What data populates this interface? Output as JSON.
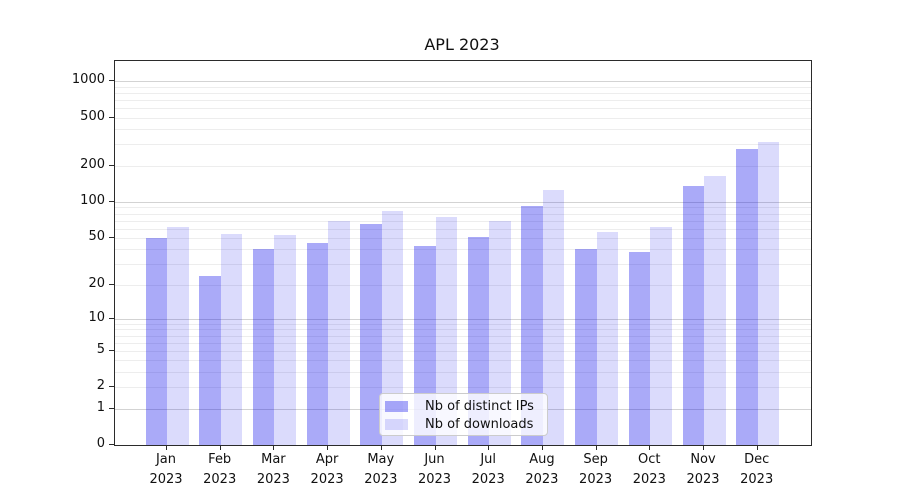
{
  "title": "APL 2023",
  "chart_data": {
    "type": "bar",
    "title": "APL 2023",
    "y_scale": "log10(1+y)",
    "ylim": [
      0,
      1465
    ],
    "y_ticks": [
      0,
      1,
      2,
      5,
      10,
      20,
      50,
      100,
      200,
      500,
      1000
    ],
    "y_tick_labels": [
      "0",
      "1",
      "2",
      "5",
      "10",
      "20",
      "50",
      "100",
      "200",
      "500",
      "1000"
    ],
    "categories": [
      "Jan",
      "Feb",
      "Mar",
      "Apr",
      "May",
      "Jun",
      "Jul",
      "Aug",
      "Sep",
      "Oct",
      "Nov",
      "Dec"
    ],
    "year": "2023",
    "series": [
      {
        "name": "Nb of distinct IPs",
        "color": "rgba(10,10,235,0.345)",
        "values": [
          50,
          24,
          40,
          45,
          65,
          43,
          51,
          93,
          40,
          38,
          135,
          273
        ]
      },
      {
        "name": "Nb of downloads",
        "color": "rgba(10,10,235,0.147)",
        "values": [
          62,
          54,
          53,
          70,
          84,
          75,
          70,
          125,
          56,
          62,
          165,
          314
        ]
      }
    ],
    "grid": "horizontal",
    "legend_position": "lower-center-inside"
  },
  "colors": {
    "background": "#ffffff",
    "spine": "#2b2b2b",
    "grid_major": "#d3d3d3",
    "grid_minor": "#ededed",
    "text": "#111111",
    "legend_bg": "rgba(255,255,255,0.8)",
    "legend_border": "#cccccc"
  }
}
